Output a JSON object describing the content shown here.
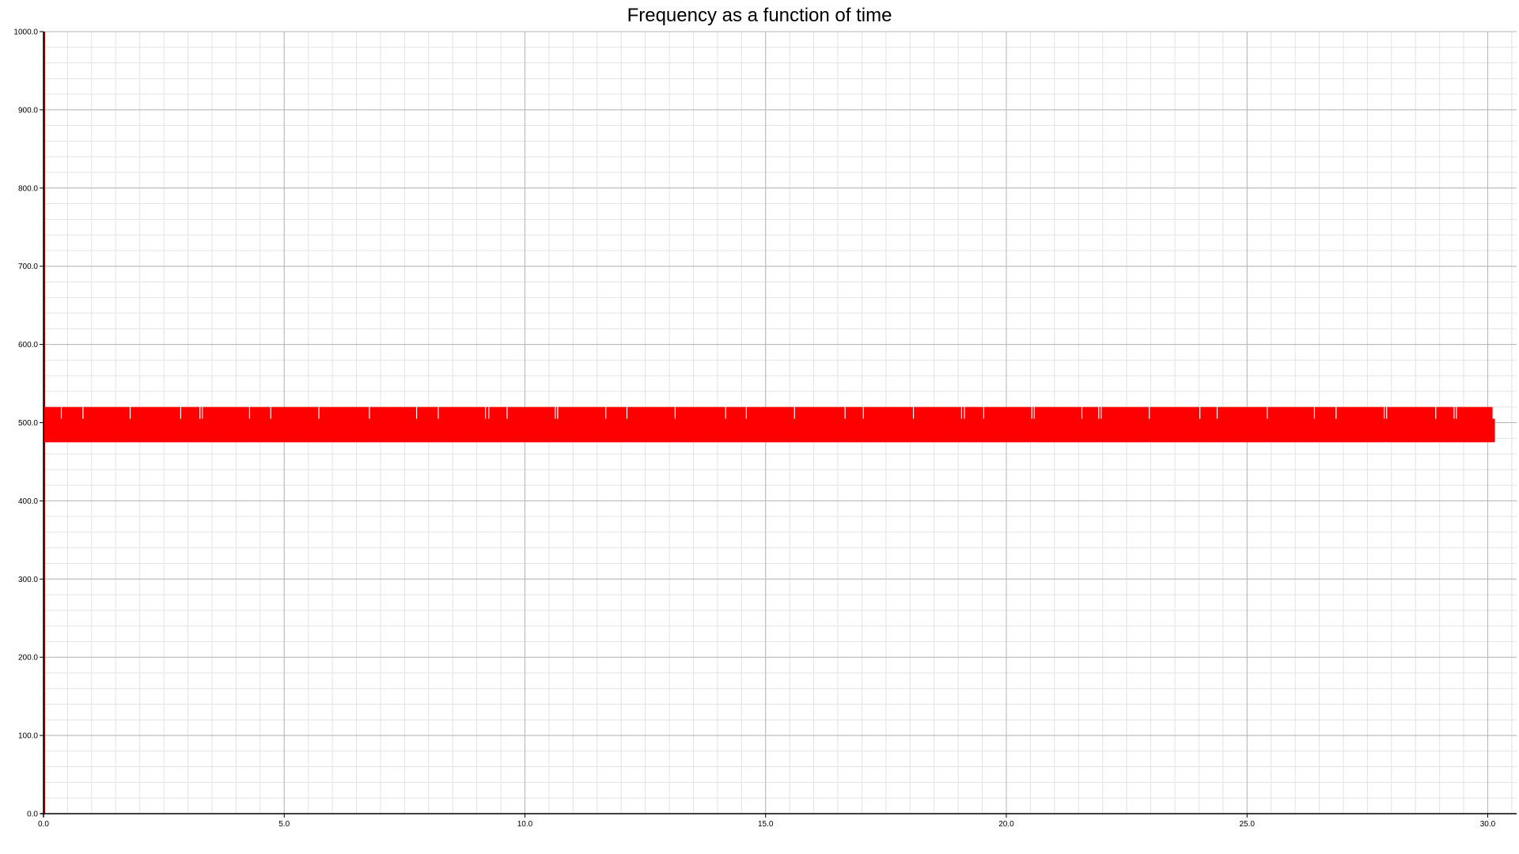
{
  "chart_data": {
    "type": "line",
    "title": "Frequency as a function of time",
    "xlabel": "",
    "ylabel": "",
    "xlim": [
      0,
      30.6
    ],
    "ylim": [
      0,
      1000
    ],
    "x_ticks": [
      "0.0",
      "5.0",
      "10.0",
      "15.0",
      "20.0",
      "25.0",
      "30.0"
    ],
    "y_ticks": [
      "0.0",
      "100.0",
      "200.0",
      "300.0",
      "400.0",
      "500.0",
      "600.0",
      "700.0",
      "800.0",
      "900.0",
      "1000.0"
    ],
    "x_tick_values": [
      0,
      5,
      10,
      15,
      20,
      25,
      30
    ],
    "y_tick_values": [
      0,
      100,
      200,
      300,
      400,
      500,
      600,
      700,
      800,
      900,
      1000
    ],
    "grid": true,
    "series": [
      {
        "color": "#ff0000",
        "start_spike": [
          0,
          1000
        ],
        "x_range": [
          0,
          30.1
        ],
        "value_band": [
          475,
          520
        ],
        "gap_times": [
          0.37,
          0.82,
          1.8,
          2.85,
          3.25,
          3.3,
          4.28,
          4.72,
          5.72,
          6.77,
          7.75,
          8.2,
          9.18,
          9.25,
          9.63,
          10.63,
          10.68,
          11.68,
          12.12,
          13.12,
          14.17,
          14.6,
          15.6,
          16.65,
          17.03,
          18.07,
          19.07,
          19.13,
          19.53,
          20.53,
          20.58,
          21.57,
          21.92,
          21.97,
          22.97,
          24.02,
          24.38,
          25.42,
          26.4,
          26.85,
          27.85,
          27.9,
          28.92,
          29.3,
          29.35
        ]
      }
    ]
  }
}
